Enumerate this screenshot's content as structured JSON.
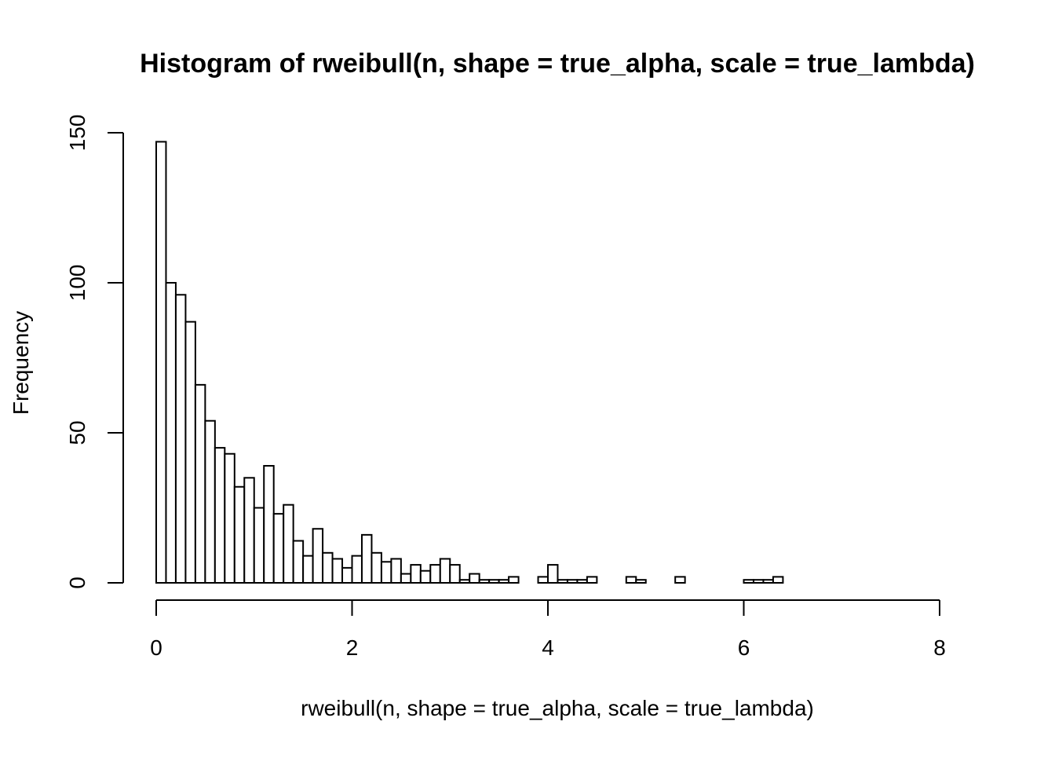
{
  "chart_data": {
    "type": "bar",
    "title": "Histogram of rweibull(n, shape = true_alpha, scale = true_lambda)",
    "xlabel": "rweibull(n, shape = true_alpha, scale = true_lambda)",
    "ylabel": "Frequency",
    "bin_width": 0.1,
    "bin_start": 0,
    "xlim": [
      0,
      8.2
    ],
    "ylim": [
      0,
      150
    ],
    "x_ticks": [
      0,
      2,
      4,
      6,
      8
    ],
    "x_tick_labels": [
      "0",
      "2",
      "4",
      "6",
      "8"
    ],
    "y_ticks": [
      0,
      50,
      100,
      150
    ],
    "y_tick_labels": [
      "0",
      "50",
      "100",
      "150"
    ],
    "grid": false,
    "values": [
      147,
      100,
      96,
      87,
      66,
      54,
      45,
      43,
      32,
      35,
      25,
      39,
      23,
      26,
      14,
      9,
      18,
      10,
      8,
      5,
      9,
      16,
      10,
      7,
      8,
      3,
      6,
      4,
      6,
      8,
      6,
      1,
      3,
      1,
      1,
      1,
      2,
      0,
      0,
      2,
      6,
      1,
      1,
      1,
      2,
      0,
      0,
      0,
      2,
      1,
      0,
      0,
      0,
      2,
      0,
      0,
      0,
      0,
      0,
      0,
      1,
      1,
      1,
      2,
      0,
      0,
      0,
      0,
      0,
      0,
      0,
      0,
      0,
      0,
      0,
      0,
      0,
      0,
      0,
      0,
      0,
      0
    ]
  }
}
